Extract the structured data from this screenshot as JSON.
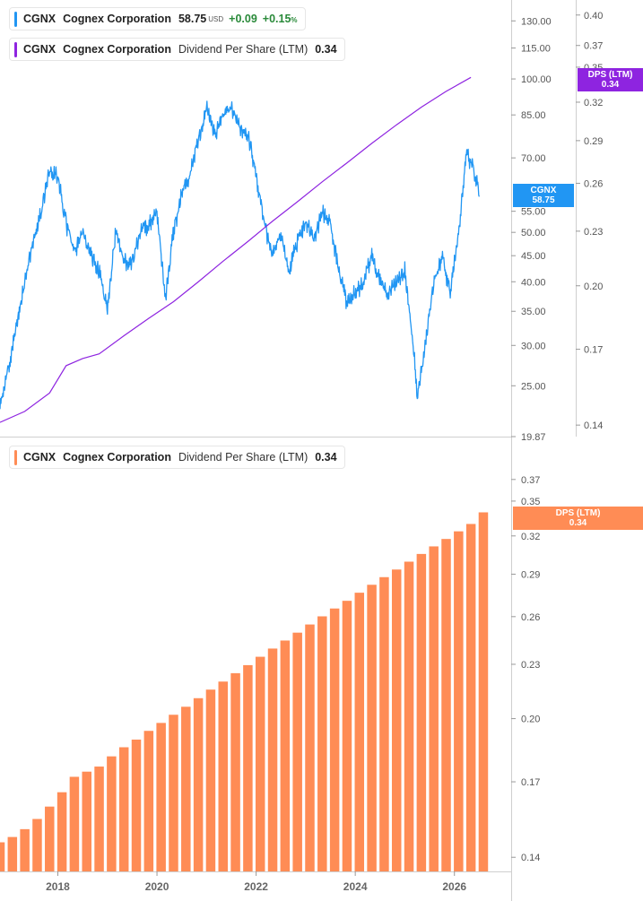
{
  "legends": {
    "price": {
      "symbol": "CGNX",
      "name": "Cognex Corporation",
      "price": "58.75",
      "currency": "USD",
      "change": "+0.09",
      "change_pct": "+0.15",
      "pct_sign": "%",
      "color": "#2196f3"
    },
    "dps_top": {
      "symbol": "CGNX",
      "name": "Cognex Corporation",
      "metric": "Dividend Per Share (LTM)",
      "value": "0.34",
      "color": "#8e24e0"
    },
    "dps_bottom": {
      "symbol": "CGNX",
      "name": "Cognex Corporation",
      "metric": "Dividend Per Share (LTM)",
      "value": "0.34",
      "color": "#ff8c55"
    }
  },
  "tags": {
    "price": {
      "line1": "CGNX",
      "line2": "58.75",
      "color": "#2196f3"
    },
    "dps_top": {
      "line1": "DPS (LTM)",
      "line2": "0.34",
      "color": "#8e24e0"
    },
    "dps_bottom": {
      "line1": "DPS (LTM)",
      "line2": "0.34",
      "color": "#ff8c55"
    }
  },
  "chart_data": [
    {
      "type": "line",
      "scale": "log",
      "x_range": [
        "2016-11",
        "2027-01"
      ],
      "y_axis_price": {
        "range": [
          19.87,
          140
        ],
        "ticks": [
          "130.00",
          "115.00",
          "100.00",
          "85.00",
          "70.00",
          "55.00",
          "50.00",
          "45.00",
          "40.00",
          "35.00",
          "30.00",
          "25.00",
          "19.87"
        ],
        "tick_values": [
          130,
          115,
          100,
          85,
          70,
          55,
          50,
          45,
          40,
          35,
          30,
          25,
          19.87
        ]
      },
      "y_axis_dps": {
        "range": [
          0.135,
          0.41
        ],
        "ticks": [
          "0.40",
          "0.37",
          "0.35",
          "0.32",
          "0.29",
          "0.26",
          "0.23",
          "0.20",
          "0.17",
          "0.14"
        ],
        "tick_values": [
          0.4,
          0.37,
          0.35,
          0.32,
          0.29,
          0.26,
          0.23,
          0.2,
          0.17,
          0.14
        ]
      },
      "series": [
        {
          "axis": "price",
          "color": "#2196f3",
          "points": [
            [
              "2016-11",
              22.5
            ],
            [
              "2017-01",
              27
            ],
            [
              "2017-03",
              33
            ],
            [
              "2017-05",
              40
            ],
            [
              "2017-07",
              48
            ],
            [
              "2017-09",
              55
            ],
            [
              "2017-11",
              66
            ],
            [
              "2018-01",
              64
            ],
            [
              "2018-03",
              52
            ],
            [
              "2018-05",
              46
            ],
            [
              "2018-07",
              50
            ],
            [
              "2018-09",
              45
            ],
            [
              "2018-11",
              42
            ],
            [
              "2019-01",
              35
            ],
            [
              "2019-03",
              50
            ],
            [
              "2019-05",
              44
            ],
            [
              "2019-07",
              44
            ],
            [
              "2019-09",
              50
            ],
            [
              "2019-11",
              52
            ],
            [
              "2020-01",
              55
            ],
            [
              "2020-03",
              37
            ],
            [
              "2020-05",
              50
            ],
            [
              "2020-07",
              60
            ],
            [
              "2020-09",
              65
            ],
            [
              "2020-11",
              75
            ],
            [
              "2021-01",
              88
            ],
            [
              "2021-03",
              78
            ],
            [
              "2021-05",
              85
            ],
            [
              "2021-07",
              88
            ],
            [
              "2021-09",
              80
            ],
            [
              "2021-11",
              78
            ],
            [
              "2022-01",
              65
            ],
            [
              "2022-03",
              52
            ],
            [
              "2022-05",
              45
            ],
            [
              "2022-07",
              50
            ],
            [
              "2022-09",
              42
            ],
            [
              "2022-11",
              48
            ],
            [
              "2023-01",
              53
            ],
            [
              "2023-03",
              48
            ],
            [
              "2023-05",
              55
            ],
            [
              "2023-07",
              52
            ],
            [
              "2023-09",
              42
            ],
            [
              "2023-11",
              36
            ],
            [
              "2024-01",
              38
            ],
            [
              "2024-03",
              40
            ],
            [
              "2024-05",
              45
            ],
            [
              "2024-07",
              40
            ],
            [
              "2024-09",
              38
            ],
            [
              "2024-11",
              40
            ],
            [
              "2025-01",
              42
            ],
            [
              "2025-03",
              30
            ],
            [
              "2025-04",
              24
            ],
            [
              "2025-06",
              30
            ],
            [
              "2025-08",
              40
            ],
            [
              "2025-10",
              45
            ],
            [
              "2025-12",
              38
            ],
            [
              "2026-02",
              50
            ],
            [
              "2026-04",
              72
            ],
            [
              "2026-06",
              65
            ],
            [
              "2026-07",
              58.75
            ]
          ]
        },
        {
          "axis": "dps",
          "color": "#8e24e0",
          "points": [
            [
              "2016-11",
              0.141
            ],
            [
              "2017-05",
              0.145
            ],
            [
              "2017-11",
              0.152
            ],
            [
              "2018-03",
              0.163
            ],
            [
              "2018-07",
              0.166
            ],
            [
              "2018-11",
              0.168
            ],
            [
              "2019-05",
              0.176
            ],
            [
              "2019-11",
              0.184
            ],
            [
              "2020-05",
              0.192
            ],
            [
              "2020-11",
              0.202
            ],
            [
              "2021-05",
              0.213
            ],
            [
              "2021-11",
              0.224
            ],
            [
              "2022-05",
              0.236
            ],
            [
              "2022-11",
              0.248
            ],
            [
              "2023-05",
              0.261
            ],
            [
              "2023-11",
              0.274
            ],
            [
              "2024-05",
              0.288
            ],
            [
              "2024-11",
              0.302
            ],
            [
              "2025-05",
              0.316
            ],
            [
              "2025-11",
              0.329
            ],
            [
              "2026-05",
              0.341
            ]
          ]
        }
      ]
    },
    {
      "type": "bar",
      "scale": "log",
      "series_name": "Dividend Per Share (LTM)",
      "color": "#ff8c55",
      "x_range": [
        "2016-11",
        "2027-01"
      ],
      "x_ticks": [
        "2018",
        "2020",
        "2022",
        "2024",
        "2026"
      ],
      "y_axis": {
        "range": [
          0.135,
          0.39
        ],
        "ticks": [
          "0.37",
          "0.35",
          "0.32",
          "0.29",
          "0.26",
          "0.23",
          "0.20",
          "0.17",
          "0.14"
        ],
        "tick_values": [
          0.37,
          0.35,
          0.32,
          0.29,
          0.26,
          0.23,
          0.2,
          0.17,
          0.14
        ]
      },
      "bars": [
        [
          "2016-11",
          0.1455
        ],
        [
          "2017-02",
          0.1475
        ],
        [
          "2017-05",
          0.1505
        ],
        [
          "2017-08",
          0.1545
        ],
        [
          "2017-11",
          0.1595
        ],
        [
          "2018-02",
          0.1655
        ],
        [
          "2018-05",
          0.1722
        ],
        [
          "2018-08",
          0.1745
        ],
        [
          "2018-11",
          0.1768
        ],
        [
          "2019-02",
          0.1815
        ],
        [
          "2019-05",
          0.1858
        ],
        [
          "2019-08",
          0.1895
        ],
        [
          "2019-11",
          0.1938
        ],
        [
          "2020-02",
          0.1978
        ],
        [
          "2020-05",
          0.202
        ],
        [
          "2020-08",
          0.2062
        ],
        [
          "2020-11",
          0.2108
        ],
        [
          "2021-02",
          0.2155
        ],
        [
          "2021-05",
          0.22
        ],
        [
          "2021-08",
          0.2248
        ],
        [
          "2021-11",
          0.2295
        ],
        [
          "2022-02",
          0.2345
        ],
        [
          "2022-05",
          0.2395
        ],
        [
          "2022-08",
          0.2445
        ],
        [
          "2022-11",
          0.2495
        ],
        [
          "2023-02",
          0.2548
        ],
        [
          "2023-05",
          0.2602
        ],
        [
          "2023-08",
          0.2655
        ],
        [
          "2023-11",
          0.2708
        ],
        [
          "2024-02",
          0.2765
        ],
        [
          "2024-05",
          0.2822
        ],
        [
          "2024-08",
          0.2878
        ],
        [
          "2024-11",
          0.2935
        ],
        [
          "2025-02",
          0.2995
        ],
        [
          "2025-05",
          0.3055
        ],
        [
          "2025-08",
          0.3115
        ],
        [
          "2025-11",
          0.3175
        ],
        [
          "2026-02",
          0.3238
        ],
        [
          "2026-05",
          0.33
        ],
        [
          "2026-08",
          0.34
        ]
      ]
    }
  ]
}
